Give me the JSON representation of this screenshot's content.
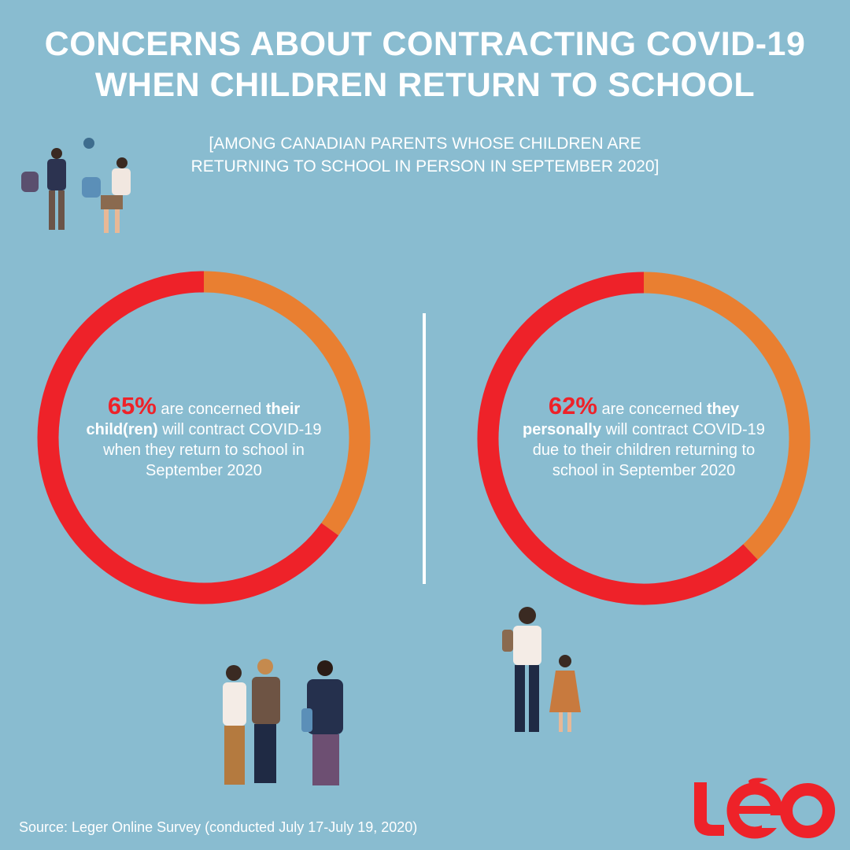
{
  "title_lines": [
    "CONCERNS ABOUT CONTRACTING COVID-19",
    "WHEN CHILDREN RETURN TO SCHOOL"
  ],
  "subtitle_lines": [
    "[AMONG CANADIAN PARENTS WHOSE CHILDREN ARE",
    "RETURNING TO SCHOOL IN PERSON IN SEPTEMBER 2020]"
  ],
  "colors": {
    "background": "#89bcd0",
    "concerned": "#ee2229",
    "remainder": "#e97f31",
    "logo": "#ee2229"
  },
  "chart_data": [
    {
      "type": "pie",
      "variant": "donut",
      "values": [
        65,
        35
      ],
      "colors": [
        "#ee2229",
        "#e97f31"
      ],
      "label": {
        "pct": "65%",
        "t1": " are concerned ",
        "b1": "their",
        "b2": "child(ren)",
        "t2": " will contract COVID-19 when they return to school in September 2020"
      }
    },
    {
      "type": "pie",
      "variant": "donut",
      "values": [
        62,
        38
      ],
      "colors": [
        "#ee2229",
        "#e97f31"
      ],
      "label": {
        "pct": "62%",
        "t1": " are concerned ",
        "b1": "they",
        "b2": "personally",
        "t2": " will contract COVID-19 due to their children returning to school in September 2020"
      }
    }
  ],
  "source": "Source: Leger Online Survey (conducted July 17-July 19, 2020)",
  "logo": {
    "text": "Léo",
    "icon": "leo-logo"
  }
}
